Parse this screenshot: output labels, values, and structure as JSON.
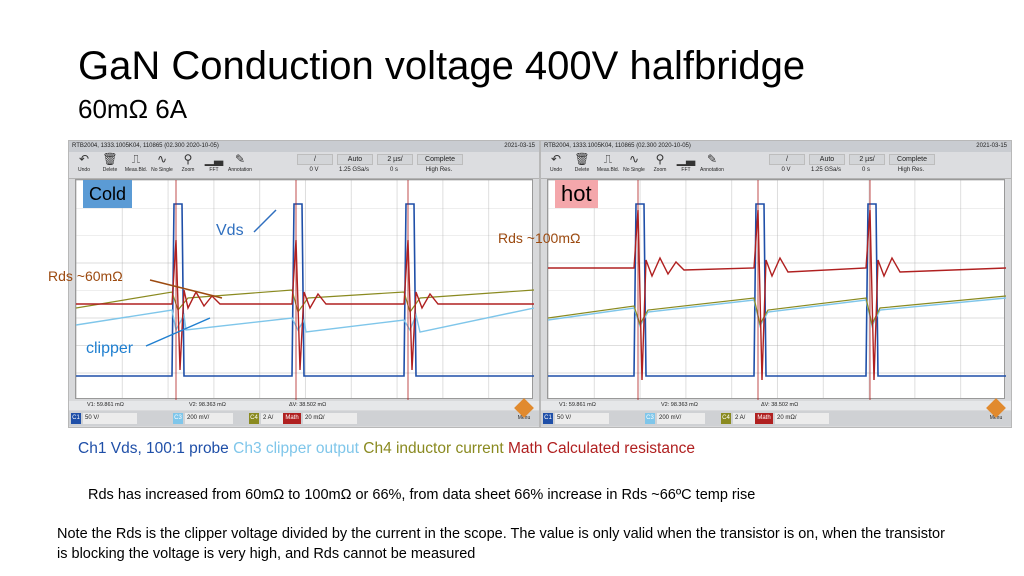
{
  "title": "GaN Conduction voltage 400V halfbridge",
  "subtitle": "60mΩ  6A",
  "scopes": [
    {
      "info": "RTB2004, 1333.1005K04, 110865 (02.300 2020-10-05)",
      "date": "2021-03-15",
      "tag": "Cold",
      "labels": {
        "vds": "Vds",
        "rds": "Rds ~60mΩ",
        "clipper": "clipper"
      },
      "measurements": {
        "v1": "V1: 59.861 mΩ",
        "v2": "V2: 98.363 mΩ",
        "dv": "ΔV: 38.502 mΩ"
      },
      "channels": {
        "c1": "50 V/",
        "c3": "200 mV/",
        "c4": "2 A/",
        "math": "20 mΩ/"
      }
    },
    {
      "info": "RTB2004, 1333.1005K04, 110865 (02.300 2020-10-05)",
      "date": "2021-03-15",
      "tag": "hot",
      "labels": {
        "rds": "Rds ~100mΩ"
      },
      "measurements": {
        "v1": "V1: 59.861 mΩ",
        "v2": "V2: 98.363 mΩ",
        "dv": "ΔV: 38.502 mΩ"
      },
      "channels": {
        "c1": "50 V/",
        "c3": "200 mV/",
        "c4": "2 A/",
        "math": "20 mΩ/"
      }
    }
  ],
  "toolbar": {
    "undo": "Undo",
    "delete": "Delete",
    "measure": "Meas.Bld.",
    "no_single": "No Single",
    "zoom": "Zoom",
    "fft": "FFT",
    "annotation": "Annotation",
    "trigger_level": "0 V",
    "acq": "Auto",
    "rate": "1.25 GSa/s",
    "timebase": "2 µs/",
    "offset": "0 s",
    "mode": "Complete",
    "res": "High Res.",
    "menu": "Menu"
  },
  "legend": {
    "ch1": "Ch1 Vds, 100:1 probe",
    "ch3": "Ch3 clipper output",
    "ch4": "Ch4 inductor current",
    "math": "Math Calculated resistance"
  },
  "notes": {
    "line1": "Rds has increased from 60mΩ  to  100mΩ or 66%,  from data sheet 66% increase in Rds ~66ºC  temp rise",
    "line2": "Note the Rds is the clipper voltage  divided by the current in the scope.  The value is only valid when the transistor is on, when the transistor is blocking the voltage is very high, and Rds cannot be measured"
  },
  "colors": {
    "ch1": "#1f4fa8",
    "ch3": "#7fc6ea",
    "ch4": "#8a8a20",
    "math": "#b02020",
    "cold_tag": "#5b9bd5",
    "hot_tag": "#f4a7ab"
  }
}
